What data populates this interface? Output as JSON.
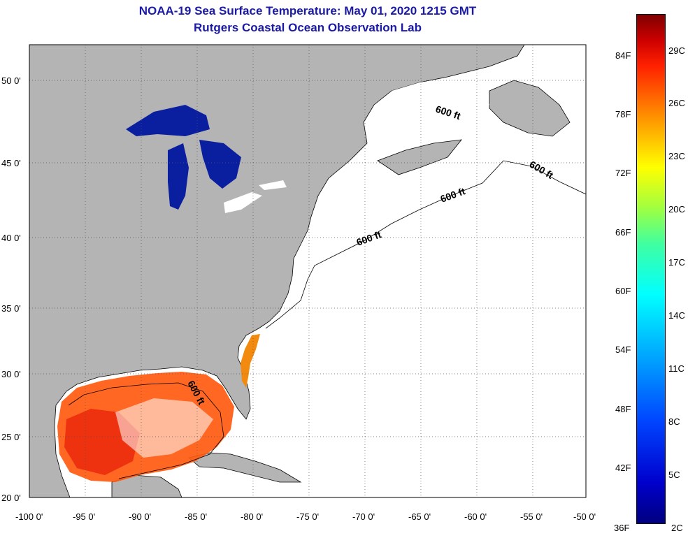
{
  "title_line1": "NOAA-19 Sea Surface Temperature:  May 01, 2020 1215 GMT",
  "title_line2": "Rutgers Coastal Ocean Observation Lab",
  "lat_labels": [
    "50 0'",
    "45 0'",
    "40 0'",
    "35 0'",
    "30 0'",
    "25 0'",
    "20 0'"
  ],
  "lon_labels": [
    "-100 0'",
    "-95 0'",
    "-90 0'",
    "-85 0'",
    "-80 0'",
    "-75 0'",
    "-70 0'",
    "-65 0'",
    "-60 0'",
    "-55 0'",
    "-50 0'"
  ],
  "contour_labels": [
    "600 ft",
    "600 ft",
    "600 ft",
    "600 ft",
    "600 ft"
  ],
  "colorbar": {
    "fahrenheit": [
      "84F",
      "78F",
      "72F",
      "66F",
      "60F",
      "54F",
      "48F",
      "42F",
      "36F"
    ],
    "celsius": [
      "29C",
      "26C",
      "23C",
      "20C",
      "17C",
      "14C",
      "11C",
      "8C",
      "5C",
      "2C"
    ]
  },
  "colors": {
    "land": "#b4b4b4",
    "ocean_nodata": "#ffffff",
    "title": "#1a1aa6",
    "gulf_warm": "#ff5a10",
    "lakes": "#0a1ea0"
  }
}
